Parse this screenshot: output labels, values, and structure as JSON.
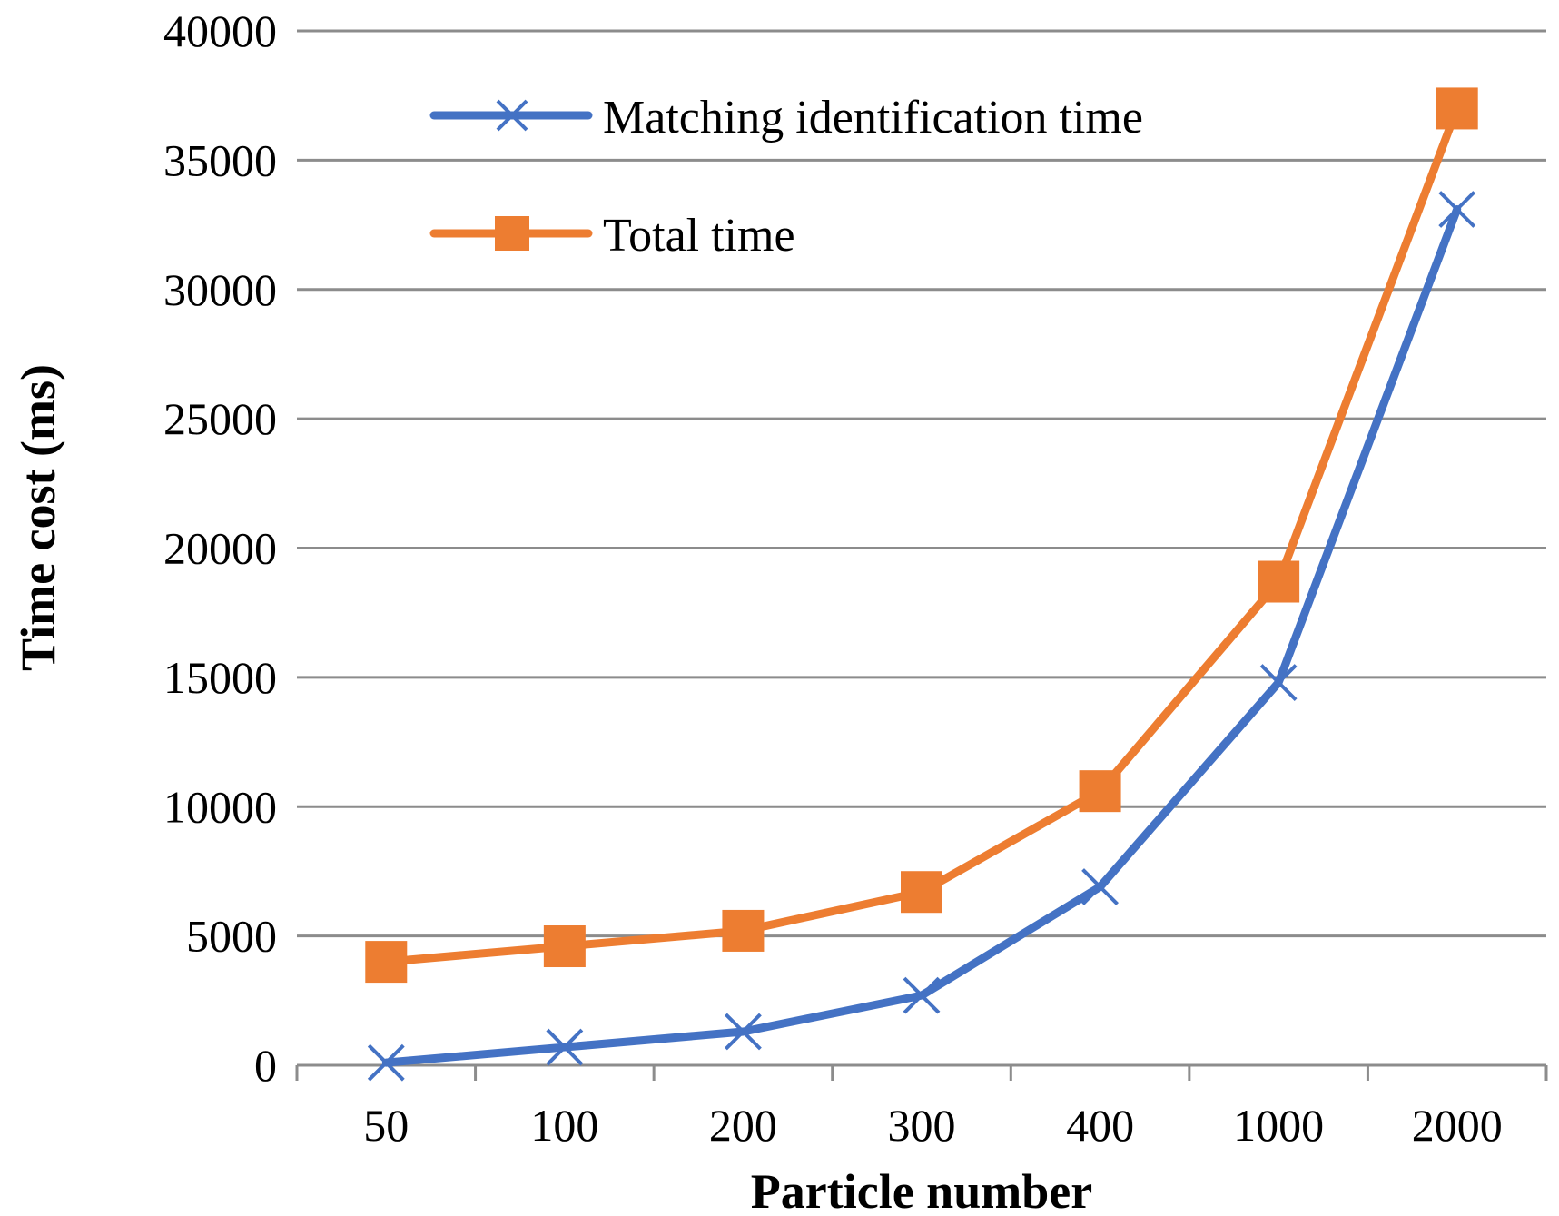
{
  "chart_data": {
    "type": "line",
    "title": "",
    "xlabel": "Particle number",
    "ylabel": "Time cost (ms)",
    "categories": [
      "50",
      "100",
      "200",
      "300",
      "400",
      "1000",
      "2000"
    ],
    "ylim": [
      0,
      40000
    ],
    "yticks": [
      0,
      5000,
      10000,
      15000,
      20000,
      25000,
      30000,
      35000,
      40000
    ],
    "grid": true,
    "legend_position": "top-left",
    "series": [
      {
        "name": "Matching identification time",
        "color": "#4472c4",
        "marker": "x",
        "values": [
          100,
          700,
          1300,
          2700,
          6900,
          14800,
          33100
        ]
      },
      {
        "name": "Total time",
        "color": "#ed7d31",
        "marker": "square",
        "values": [
          4000,
          4600,
          5200,
          6700,
          10600,
          18700,
          37000
        ]
      }
    ]
  }
}
